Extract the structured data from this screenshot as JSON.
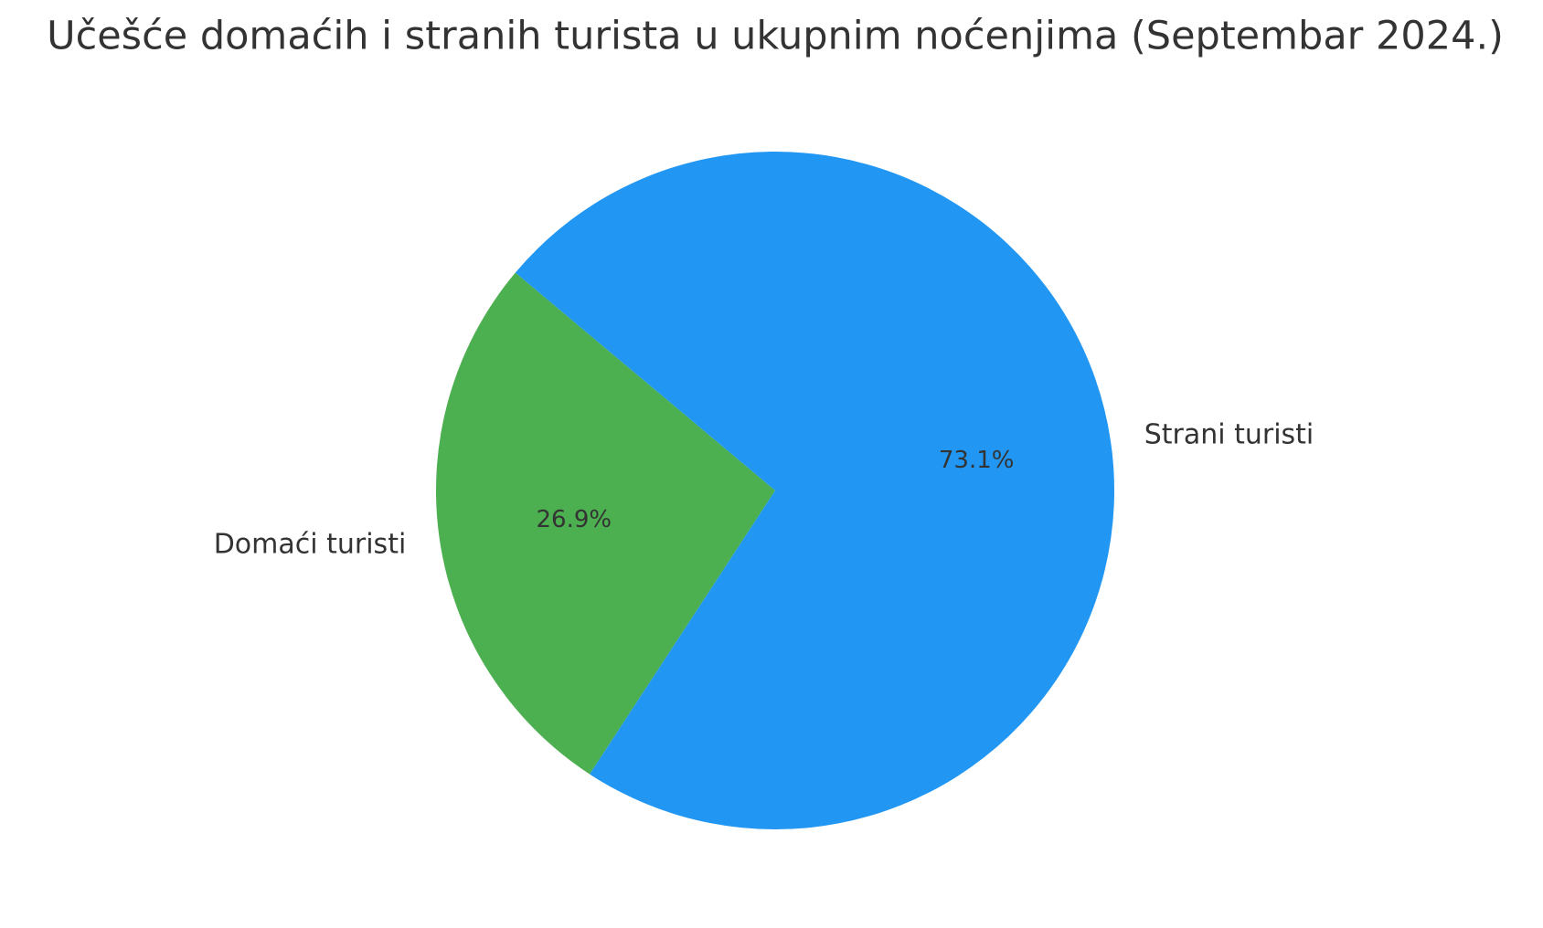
{
  "chart_data": {
    "type": "pie",
    "title": "Učešće domaćih i stranih turista u ukupnim noćenjima (Septembar 2024.)",
    "categories": [
      "Domaći turisti",
      "Strani turisti"
    ],
    "values": [
      26.9,
      73.1
    ],
    "value_labels": [
      "26.9%",
      "73.1%"
    ],
    "colors": [
      "#4caf50",
      "#2196f3"
    ]
  }
}
